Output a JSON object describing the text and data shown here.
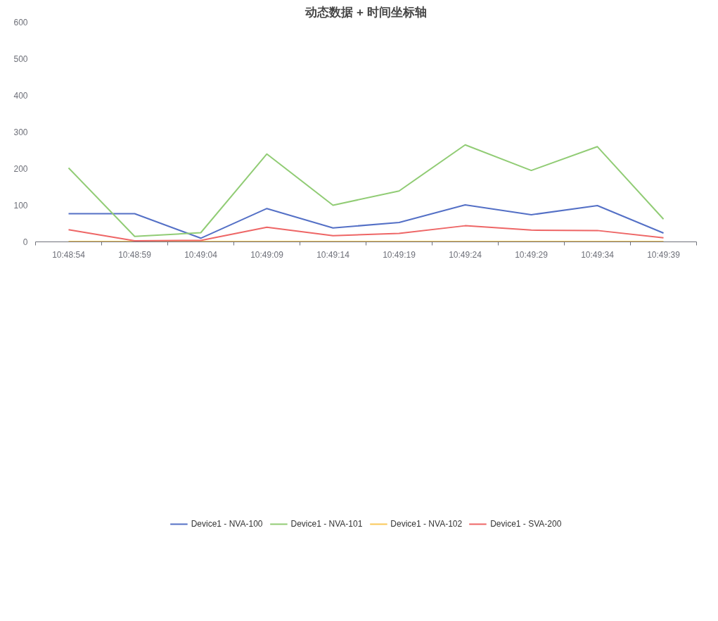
{
  "chart_data": {
    "type": "line",
    "title": "动态数据 + 时间坐标轴",
    "categories": [
      "10:48:54",
      "10:48:59",
      "10:49:04",
      "10:49:09",
      "10:49:14",
      "10:49:19",
      "10:49:24",
      "10:49:29",
      "10:49:34",
      "10:49:39"
    ],
    "series": [
      {
        "name": "Device1 - NVA-100",
        "color": "#5470c6",
        "values": [
          77,
          77,
          10,
          91,
          38,
          53,
          101,
          74,
          99,
          24
        ]
      },
      {
        "name": "Device1 - NVA-101",
        "color": "#91cc75",
        "values": [
          202,
          15,
          25,
          240,
          100,
          139,
          265,
          195,
          260,
          62
        ]
      },
      {
        "name": "Device1 - NVA-102",
        "color": "#fac858",
        "values": [
          1,
          1,
          1,
          1,
          1,
          1,
          1,
          1,
          1,
          1
        ]
      },
      {
        "name": "Device1 - SVA-200",
        "color": "#ee6666",
        "values": [
          33,
          3,
          4,
          40,
          17,
          23,
          44,
          32,
          31,
          11
        ]
      }
    ],
    "ylim": [
      0,
      600
    ],
    "yticks": [
      0,
      100,
      200,
      300,
      400,
      500,
      600
    ],
    "grid": false,
    "legend": "bottom",
    "marker": "none",
    "line_style": "solid"
  }
}
